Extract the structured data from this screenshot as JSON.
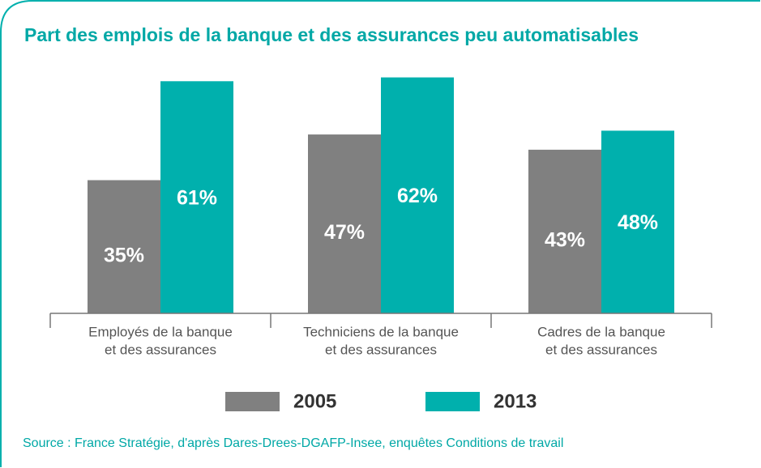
{
  "chart_data": {
    "type": "bar",
    "title": "Part des emplois de la banque et des assurances peu automatisables",
    "categories": [
      [
        "Employés de la banque",
        "et des assurances"
      ],
      [
        "Techniciens de la banque",
        "et des assurances"
      ],
      [
        "Cadres de la banque",
        "et des assurances"
      ]
    ],
    "series": [
      {
        "name": "2005",
        "color": "#808080",
        "values": [
          35,
          47,
          43
        ],
        "value_labels": [
          "35%",
          "47%",
          "43%"
        ]
      },
      {
        "name": "2013",
        "color": "#00b0ad",
        "values": [
          61,
          62,
          48
        ],
        "value_labels": [
          "61%",
          "62%",
          "48%"
        ]
      }
    ],
    "source": "Source : France Stratégie, d'après Dares-Drees-DGAFP-Insee, enquêtes Conditions de travail"
  }
}
